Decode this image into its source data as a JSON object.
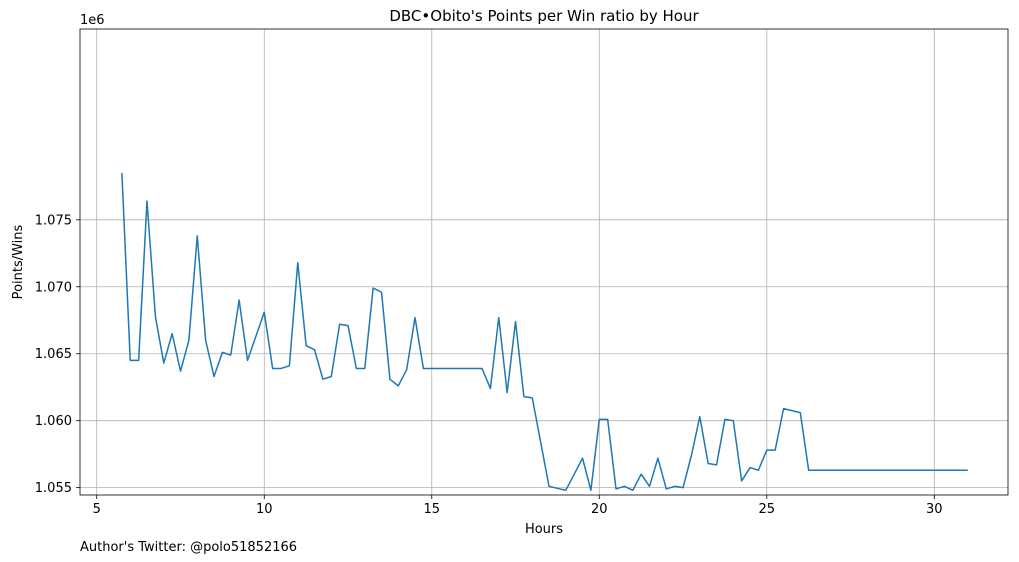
{
  "chart_data": {
    "type": "line",
    "title": "DBC•Obito's Points per Win ratio by Hour",
    "xlabel": "Hours",
    "ylabel": "Points/Wins",
    "y_offset_label": "1e6",
    "xlim": [
      4.5,
      32.2
    ],
    "ylim": [
      1.05445,
      1.08925
    ],
    "x_ticks": [
      5,
      10,
      15,
      20,
      25,
      30
    ],
    "x_tick_labels": [
      "5",
      "10",
      "15",
      "20",
      "25",
      "30"
    ],
    "y_ticks": [
      1.055,
      1.06,
      1.065,
      1.07,
      1.075
    ],
    "y_tick_labels": [
      "1.055",
      "1.060",
      "1.065",
      "1.070",
      "1.075"
    ],
    "grid": true,
    "series": [
      {
        "color": "#1f77b4",
        "x": [
          5.75,
          6.0,
          6.25,
          6.5,
          6.75,
          7.0,
          7.25,
          7.5,
          7.75,
          8.0,
          8.25,
          8.5,
          8.75,
          9.0,
          9.25,
          9.5,
          10.0,
          10.25,
          10.5,
          10.75,
          11.0,
          11.25,
          11.5,
          11.75,
          12.0,
          12.25,
          12.5,
          12.75,
          13.0,
          13.25,
          13.5,
          13.75,
          14.0,
          14.25,
          14.5,
          14.75,
          15.0,
          16.5,
          16.75,
          17.0,
          17.25,
          17.5,
          17.75,
          18.0,
          18.5,
          19.0,
          19.5,
          19.75,
          20.0,
          20.25,
          20.5,
          20.75,
          21.0,
          21.25,
          21.5,
          21.75,
          22.0,
          22.25,
          22.5,
          22.75,
          23.0,
          23.25,
          23.5,
          23.75,
          24.0,
          24.25,
          24.5,
          24.75,
          25.0,
          25.25,
          25.5,
          26.0,
          26.25,
          31.0
        ],
        "y": [
          1.0785,
          1.0645,
          1.0645,
          1.0764,
          1.0678,
          1.0643,
          1.0665,
          1.0637,
          1.066,
          1.0738,
          1.066,
          1.0633,
          1.0651,
          1.0649,
          1.069,
          1.0645,
          1.0681,
          1.0639,
          1.0639,
          1.0641,
          1.0718,
          1.0656,
          1.0653,
          1.0631,
          1.0633,
          1.0672,
          1.0671,
          1.0639,
          1.0639,
          1.0699,
          1.0696,
          1.0631,
          1.0626,
          1.0638,
          1.0677,
          1.0639,
          1.0639,
          1.0639,
          1.0624,
          1.0677,
          1.0621,
          1.0674,
          1.0618,
          1.0617,
          1.0551,
          1.0548,
          1.0572,
          1.0548,
          1.0601,
          1.0601,
          1.0549,
          1.0551,
          1.0548,
          1.056,
          1.0551,
          1.0572,
          1.0549,
          1.0551,
          1.055,
          1.0574,
          1.0603,
          1.0568,
          1.0567,
          1.0601,
          1.06,
          1.0555,
          1.0565,
          1.0563,
          1.0578,
          1.0578,
          1.0609,
          1.0606,
          1.0563,
          1.0563
        ]
      }
    ]
  },
  "footer": {
    "author_credit": "Author's Twitter: @polo51852166"
  }
}
